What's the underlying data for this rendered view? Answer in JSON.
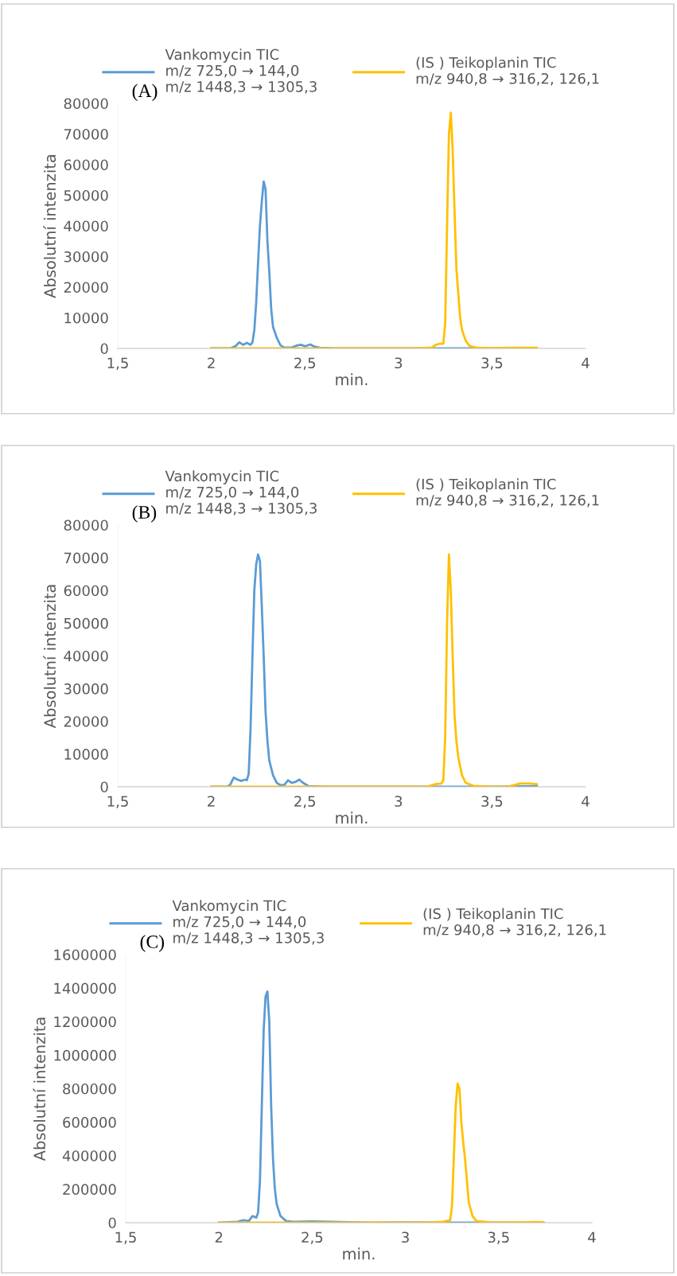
{
  "chart_data": [
    {
      "type": "line",
      "annotations": [
        "(A)"
      ],
      "xlabel": "min.",
      "ylabel": "Absolutní intenzita",
      "legend": "top",
      "grid": false,
      "marker": "none",
      "line_style": "solid",
      "xlim": [
        1.5,
        4
      ],
      "xticks": [
        {
          "value": 1.5,
          "label": "1,5"
        },
        2,
        {
          "value": 2.5,
          "label": "2,5"
        },
        3,
        {
          "value": 3.5,
          "label": "3,5"
        },
        4
      ],
      "ylim": [
        0,
        80000
      ],
      "yticks": [
        0,
        10000,
        20000,
        30000,
        40000,
        50000,
        60000,
        70000,
        80000
      ],
      "series": [
        {
          "name": "Vankomycin TIC\nm/z 725,0 → 144,0\nm/z 1448,3 → 1305,3",
          "color": "#5b9bd5",
          "x": [
            2.0,
            2.1,
            2.13,
            2.15,
            2.17,
            2.19,
            2.21,
            2.22,
            2.23,
            2.24,
            2.25,
            2.26,
            2.27,
            2.28,
            2.29,
            2.3,
            2.31,
            2.32,
            2.33,
            2.35,
            2.37,
            2.39,
            2.43,
            2.46,
            2.48,
            2.5,
            2.53,
            2.55,
            2.58,
            2.65,
            3.0,
            3.3,
            3.5,
            3.74
          ],
          "values": [
            0,
            0,
            800,
            2000,
            1200,
            1800,
            1200,
            2000,
            6000,
            15000,
            28000,
            40000,
            48000,
            54500,
            52000,
            35000,
            25000,
            13000,
            7000,
            3500,
            1000,
            300,
            300,
            1000,
            1200,
            700,
            1300,
            600,
            200,
            0,
            0,
            0,
            0,
            0
          ]
        },
        {
          "name": "(IS ) Teikoplanin TIC\nm/z 940,8 → 316,2, 126,1",
          "color": "#ffc000",
          "x": [
            2.0,
            3.1,
            3.18,
            3.2,
            3.22,
            3.24,
            3.25,
            3.26,
            3.27,
            3.28,
            3.29,
            3.3,
            3.31,
            3.32,
            3.33,
            3.34,
            3.36,
            3.38,
            3.42,
            3.5,
            3.6,
            3.74
          ],
          "values": [
            0,
            0,
            300,
            1200,
            1500,
            1500,
            8000,
            40000,
            70000,
            77000,
            65000,
            45000,
            26000,
            18000,
            10000,
            6000,
            2500,
            800,
            200,
            100,
            200,
            200
          ]
        }
      ]
    },
    {
      "type": "line",
      "annotations": [
        "(B)"
      ],
      "xlabel": "min.",
      "ylabel": "Absolutní intenzita",
      "legend": "top",
      "grid": false,
      "marker": "none",
      "line_style": "solid",
      "xlim": [
        1.5,
        4
      ],
      "xticks": [
        {
          "value": 1.5,
          "label": "1,5"
        },
        2,
        {
          "value": 2.5,
          "label": "2,5"
        },
        3,
        {
          "value": 3.5,
          "label": "3,5"
        },
        4
      ],
      "ylim": [
        0,
        80000
      ],
      "yticks": [
        0,
        10000,
        20000,
        30000,
        40000,
        50000,
        60000,
        70000,
        80000
      ],
      "series": [
        {
          "name": "Vankomycin TIC\nm/z 725,0 → 144,0\nm/z 1448,3 → 1305,3",
          "color": "#5b9bd5",
          "x": [
            2.0,
            2.08,
            2.1,
            2.12,
            2.14,
            2.16,
            2.18,
            2.19,
            2.2,
            2.21,
            2.22,
            2.23,
            2.24,
            2.25,
            2.26,
            2.27,
            2.28,
            2.29,
            2.3,
            2.31,
            2.33,
            2.35,
            2.37,
            2.39,
            2.41,
            2.43,
            2.45,
            2.47,
            2.49,
            2.52,
            2.6,
            3.0,
            3.5,
            3.6,
            3.74
          ],
          "values": [
            0,
            0,
            500,
            2800,
            2200,
            1800,
            2200,
            2000,
            4000,
            18000,
            40000,
            60000,
            68000,
            71000,
            69000,
            55000,
            40000,
            23000,
            14000,
            8000,
            3500,
            1200,
            500,
            500,
            2000,
            1200,
            1500,
            2200,
            1200,
            200,
            0,
            0,
            0,
            100,
            200
          ]
        },
        {
          "name": "(IS ) Teikoplanin TIC\nm/z 940,8 → 316,2, 126,1",
          "color": "#ffc000",
          "x": [
            2.0,
            3.15,
            3.2,
            3.23,
            3.24,
            3.25,
            3.26,
            3.27,
            3.28,
            3.29,
            3.3,
            3.31,
            3.32,
            3.34,
            3.36,
            3.4,
            3.5,
            3.58,
            3.62,
            3.65,
            3.7,
            3.74
          ],
          "values": [
            0,
            0,
            800,
            1000,
            2000,
            15000,
            50000,
            71000,
            60000,
            40000,
            22000,
            14000,
            9000,
            3500,
            1200,
            300,
            0,
            0,
            500,
            1000,
            1000,
            800
          ]
        }
      ]
    },
    {
      "type": "line",
      "annotations": [
        "(C)"
      ],
      "xlabel": "min.",
      "ylabel": "Absolutní intenzita",
      "legend": "top",
      "grid": false,
      "marker": "none",
      "line_style": "solid",
      "xlim": [
        1.5,
        4
      ],
      "xticks": [
        {
          "value": 1.5,
          "label": "1,5"
        },
        2,
        {
          "value": 2.5,
          "label": "2,5"
        },
        3,
        {
          "value": 3.5,
          "label": "3,5"
        },
        4
      ],
      "ylim": [
        0,
        1600000
      ],
      "yticks": [
        0,
        200000,
        400000,
        600000,
        800000,
        1000000,
        1200000,
        1400000,
        1600000
      ],
      "series": [
        {
          "name": "Vankomycin TIC\nm/z 725,0 → 144,0\nm/z 1448,3 → 1305,3",
          "color": "#5b9bd5",
          "x": [
            2.0,
            2.1,
            2.13,
            2.16,
            2.18,
            2.2,
            2.21,
            2.22,
            2.23,
            2.24,
            2.25,
            2.26,
            2.27,
            2.28,
            2.29,
            2.3,
            2.31,
            2.33,
            2.36,
            2.4,
            2.5,
            2.8,
            3.0,
            3.2,
            3.74
          ],
          "values": [
            0,
            5000,
            15000,
            10000,
            40000,
            30000,
            60000,
            250000,
            700000,
            1150000,
            1350000,
            1380000,
            1200000,
            700000,
            380000,
            200000,
            110000,
            40000,
            10000,
            5000,
            8000,
            0,
            2000,
            0,
            0
          ]
        },
        {
          "name": "(IS ) Teikoplanin TIC\nm/z 940,8 → 316,2, 126,1",
          "color": "#ffc000",
          "x": [
            2.0,
            3.1,
            3.2,
            3.24,
            3.25,
            3.26,
            3.27,
            3.28,
            3.29,
            3.3,
            3.31,
            3.32,
            3.33,
            3.34,
            3.36,
            3.38,
            3.45,
            3.6,
            3.7,
            3.74
          ],
          "values": [
            0,
            0,
            5000,
            15000,
            100000,
            400000,
            700000,
            830000,
            800000,
            600000,
            480000,
            380000,
            250000,
            120000,
            40000,
            10000,
            3000,
            2000,
            4000,
            2000
          ]
        }
      ]
    }
  ]
}
